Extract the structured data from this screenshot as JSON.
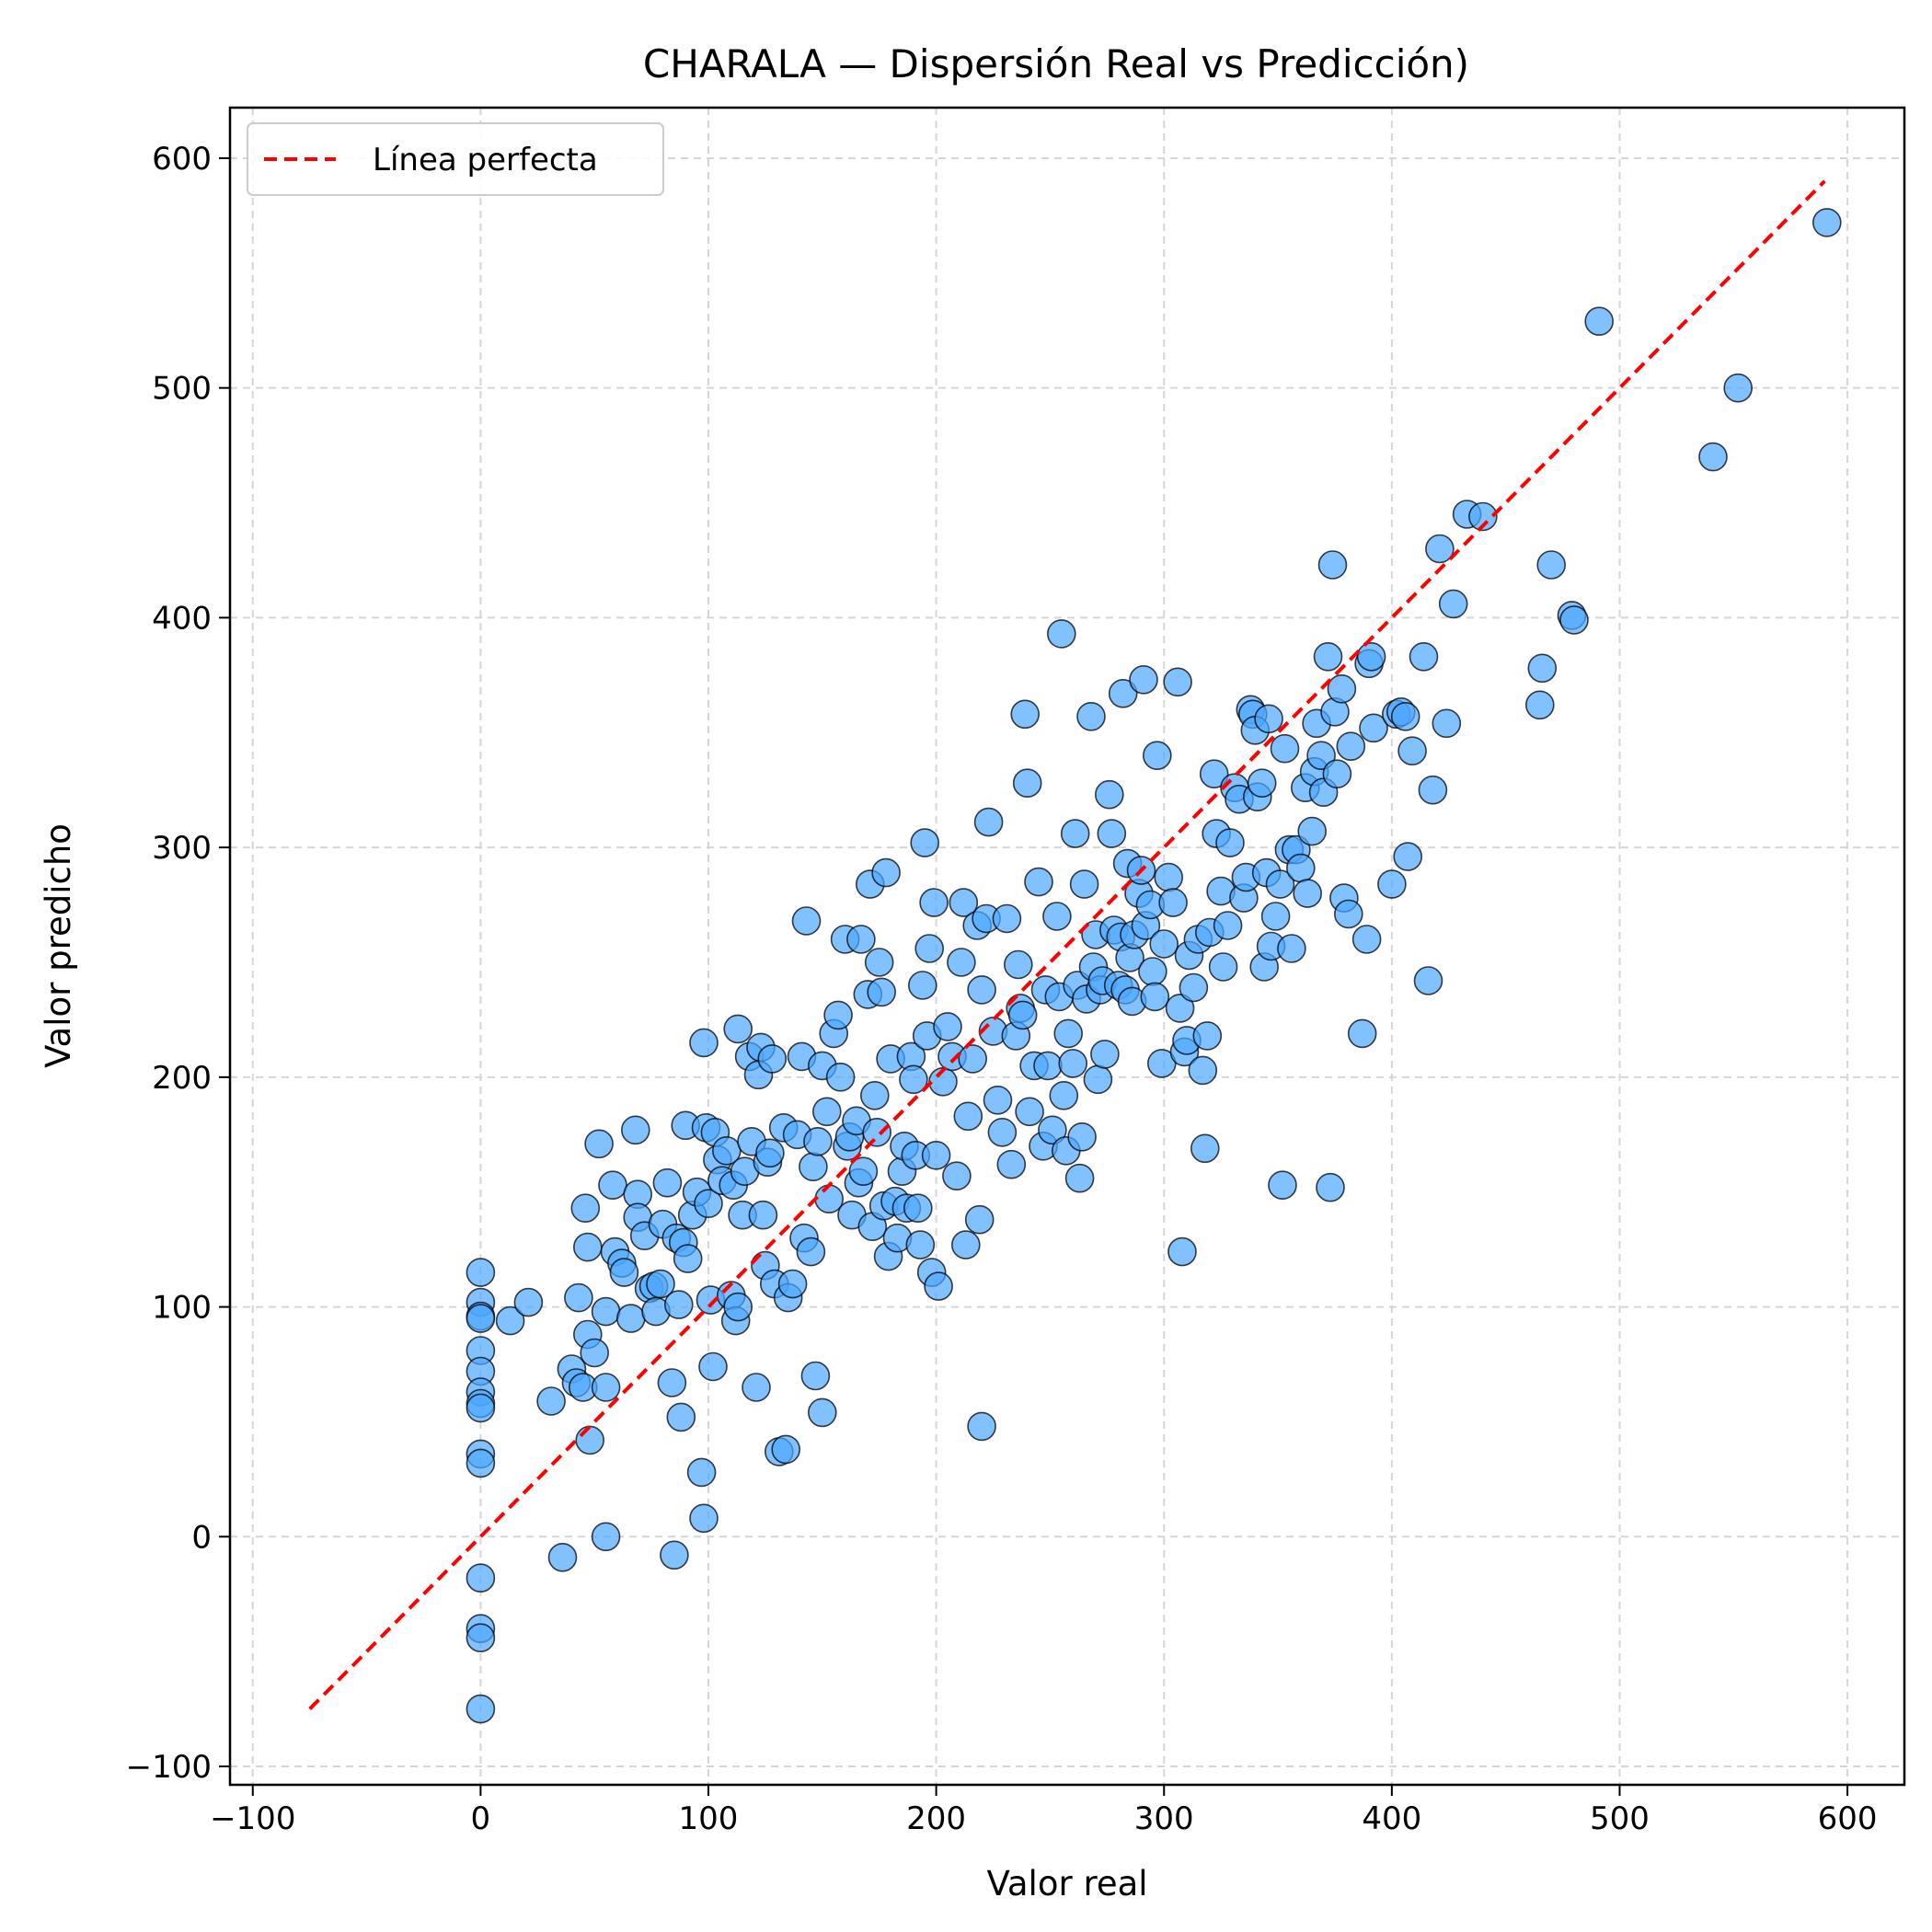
{
  "chart_data": {
    "type": "scatter",
    "title": "CHARALA — Dispersión Real vs Predicción)",
    "xlabel": "Valor real",
    "ylabel": "Valor predicho",
    "xlim": [
      -110,
      625
    ],
    "ylim": [
      -108,
      622
    ],
    "xticks": [
      -100,
      0,
      100,
      200,
      300,
      400,
      500,
      600
    ],
    "yticks": [
      -100,
      0,
      100,
      200,
      300,
      400,
      500,
      600
    ],
    "xtick_labels": [
      "−100",
      "0",
      "100",
      "200",
      "300",
      "400",
      "500",
      "600"
    ],
    "ytick_labels": [
      "−100",
      "0",
      "100",
      "200",
      "300",
      "400",
      "500",
      "600"
    ],
    "grid": true,
    "legend_position": "top-left",
    "colors": {
      "points": "#4da6ff",
      "point_edge": "#000000",
      "reference": "#ff0000"
    },
    "series": [
      {
        "name": "",
        "type": "scatter",
        "points": [
          [
            0,
            115
          ],
          [
            0,
            102
          ],
          [
            0,
            96
          ],
          [
            0,
            95
          ],
          [
            0,
            81
          ],
          [
            0,
            72
          ],
          [
            0,
            63
          ],
          [
            0,
            58
          ],
          [
            0,
            56
          ],
          [
            0,
            36
          ],
          [
            0,
            32
          ],
          [
            0,
            -18
          ],
          [
            0,
            -40
          ],
          [
            0,
            -44
          ],
          [
            0,
            -75
          ],
          [
            13,
            94
          ],
          [
            21,
            102
          ],
          [
            31,
            59
          ],
          [
            36,
            -9
          ],
          [
            40,
            73
          ],
          [
            42,
            67
          ],
          [
            43,
            104
          ],
          [
            45,
            65
          ],
          [
            46,
            143
          ],
          [
            47,
            126
          ],
          [
            47,
            88
          ],
          [
            48,
            42
          ],
          [
            50,
            80
          ],
          [
            52,
            171
          ],
          [
            55,
            0
          ],
          [
            55,
            98
          ],
          [
            55,
            65
          ],
          [
            58,
            153
          ],
          [
            59,
            124
          ],
          [
            62,
            119
          ],
          [
            63,
            115
          ],
          [
            66,
            95
          ],
          [
            68,
            177
          ],
          [
            69,
            149
          ],
          [
            69,
            139
          ],
          [
            72,
            131
          ],
          [
            74,
            108
          ],
          [
            76,
            109
          ],
          [
            77,
            98
          ],
          [
            79,
            110
          ],
          [
            80,
            136
          ],
          [
            82,
            154
          ],
          [
            84,
            67
          ],
          [
            85,
            -8
          ],
          [
            86,
            130
          ],
          [
            87,
            101
          ],
          [
            88,
            52
          ],
          [
            89,
            128
          ],
          [
            90,
            179
          ],
          [
            91,
            121
          ],
          [
            93,
            140
          ],
          [
            95,
            150
          ],
          [
            97,
            28
          ],
          [
            98,
            215
          ],
          [
            98,
            8
          ],
          [
            99,
            178
          ],
          [
            100,
            145
          ],
          [
            101,
            103
          ],
          [
            102,
            74
          ],
          [
            103,
            176
          ],
          [
            104,
            164
          ],
          [
            106,
            155
          ],
          [
            108,
            168
          ],
          [
            110,
            105
          ],
          [
            111,
            153
          ],
          [
            112,
            94
          ],
          [
            113,
            221
          ],
          [
            113,
            100
          ],
          [
            115,
            140
          ],
          [
            116,
            159
          ],
          [
            118,
            209
          ],
          [
            119,
            172
          ],
          [
            121,
            65
          ],
          [
            122,
            201
          ],
          [
            123,
            213
          ],
          [
            124,
            140
          ],
          [
            125,
            118
          ],
          [
            126,
            163
          ],
          [
            127,
            167
          ],
          [
            128,
            208
          ],
          [
            129,
            110
          ],
          [
            131,
            37
          ],
          [
            133,
            178
          ],
          [
            134,
            38
          ],
          [
            135,
            104
          ],
          [
            137,
            110
          ],
          [
            139,
            175
          ],
          [
            141,
            209
          ],
          [
            142,
            130
          ],
          [
            143,
            268
          ],
          [
            145,
            124
          ],
          [
            146,
            161
          ],
          [
            147,
            70
          ],
          [
            148,
            172
          ],
          [
            150,
            54
          ],
          [
            150,
            205
          ],
          [
            152,
            185
          ],
          [
            153,
            147
          ],
          [
            155,
            219
          ],
          [
            157,
            227
          ],
          [
            158,
            200
          ],
          [
            160,
            260
          ],
          [
            161,
            170
          ],
          [
            162,
            174
          ],
          [
            163,
            140
          ],
          [
            165,
            181
          ],
          [
            166,
            154
          ],
          [
            167,
            260
          ],
          [
            168,
            159
          ],
          [
            170,
            236
          ],
          [
            171,
            284
          ],
          [
            172,
            135
          ],
          [
            173,
            192
          ],
          [
            174,
            176
          ],
          [
            175,
            250
          ],
          [
            176,
            237
          ],
          [
            177,
            144
          ],
          [
            178,
            289
          ],
          [
            179,
            122
          ],
          [
            180,
            208
          ],
          [
            182,
            146
          ],
          [
            183,
            130
          ],
          [
            185,
            159
          ],
          [
            186,
            170
          ],
          [
            187,
            143
          ],
          [
            189,
            209
          ],
          [
            190,
            199
          ],
          [
            191,
            166
          ],
          [
            192,
            143
          ],
          [
            193,
            127
          ],
          [
            194,
            240
          ],
          [
            195,
            302
          ],
          [
            196,
            218
          ],
          [
            197,
            256
          ],
          [
            198,
            115
          ],
          [
            199,
            276
          ],
          [
            200,
            166
          ],
          [
            201,
            109
          ],
          [
            203,
            198
          ],
          [
            205,
            222
          ],
          [
            207,
            209
          ],
          [
            209,
            157
          ],
          [
            211,
            250
          ],
          [
            212,
            276
          ],
          [
            213,
            127
          ],
          [
            214,
            183
          ],
          [
            216,
            208
          ],
          [
            218,
            266
          ],
          [
            219,
            138
          ],
          [
            220,
            48
          ],
          [
            220,
            238
          ],
          [
            222,
            269
          ],
          [
            223,
            311
          ],
          [
            225,
            220
          ],
          [
            227,
            190
          ],
          [
            229,
            176
          ],
          [
            231,
            269
          ],
          [
            233,
            162
          ],
          [
            235,
            218
          ],
          [
            236,
            249
          ],
          [
            237,
            230
          ],
          [
            238,
            227
          ],
          [
            239,
            358
          ],
          [
            240,
            328
          ],
          [
            241,
            185
          ],
          [
            243,
            205
          ],
          [
            245,
            285
          ],
          [
            247,
            170
          ],
          [
            248,
            238
          ],
          [
            249,
            205
          ],
          [
            251,
            177
          ],
          [
            253,
            270
          ],
          [
            254,
            235
          ],
          [
            255,
            393
          ],
          [
            256,
            192
          ],
          [
            257,
            168
          ],
          [
            258,
            219
          ],
          [
            260,
            206
          ],
          [
            261,
            306
          ],
          [
            262,
            240
          ],
          [
            263,
            156
          ],
          [
            264,
            174
          ],
          [
            265,
            284
          ],
          [
            266,
            234
          ],
          [
            268,
            357
          ],
          [
            269,
            248
          ],
          [
            270,
            262
          ],
          [
            271,
            199
          ],
          [
            272,
            238
          ],
          [
            273,
            242
          ],
          [
            274,
            210
          ],
          [
            276,
            323
          ],
          [
            277,
            306
          ],
          [
            278,
            264
          ],
          [
            280,
            240
          ],
          [
            281,
            261
          ],
          [
            282,
            367
          ],
          [
            283,
            238
          ],
          [
            284,
            293
          ],
          [
            285,
            252
          ],
          [
            286,
            233
          ],
          [
            287,
            262
          ],
          [
            289,
            280
          ],
          [
            290,
            290
          ],
          [
            291,
            373
          ],
          [
            292,
            266
          ],
          [
            294,
            275
          ],
          [
            295,
            246
          ],
          [
            296,
            235
          ],
          [
            297,
            340
          ],
          [
            299,
            206
          ],
          [
            300,
            258
          ],
          [
            302,
            287
          ],
          [
            304,
            276
          ],
          [
            306,
            372
          ],
          [
            307,
            230
          ],
          [
            308,
            124
          ],
          [
            309,
            211
          ],
          [
            310,
            216
          ],
          [
            311,
            253
          ],
          [
            313,
            239
          ],
          [
            315,
            260
          ],
          [
            317,
            203
          ],
          [
            318,
            169
          ],
          [
            319,
            218
          ],
          [
            320,
            263
          ],
          [
            322,
            332
          ],
          [
            323,
            306
          ],
          [
            325,
            281
          ],
          [
            326,
            248
          ],
          [
            328,
            266
          ],
          [
            329,
            302
          ],
          [
            331,
            326
          ],
          [
            333,
            321
          ],
          [
            335,
            278
          ],
          [
            336,
            287
          ],
          [
            338,
            360
          ],
          [
            339,
            358
          ],
          [
            340,
            351
          ],
          [
            341,
            322
          ],
          [
            343,
            328
          ],
          [
            344,
            248
          ],
          [
            345,
            289
          ],
          [
            346,
            356
          ],
          [
            347,
            257
          ],
          [
            349,
            270
          ],
          [
            351,
            284
          ],
          [
            352,
            153
          ],
          [
            353,
            343
          ],
          [
            355,
            299
          ],
          [
            356,
            256
          ],
          [
            358,
            299
          ],
          [
            360,
            291
          ],
          [
            362,
            326
          ],
          [
            363,
            280
          ],
          [
            365,
            307
          ],
          [
            366,
            333
          ],
          [
            367,
            354
          ],
          [
            369,
            340
          ],
          [
            370,
            324
          ],
          [
            372,
            383
          ],
          [
            373,
            152
          ],
          [
            374,
            423
          ],
          [
            375,
            359
          ],
          [
            376,
            332
          ],
          [
            378,
            369
          ],
          [
            379,
            278
          ],
          [
            381,
            271
          ],
          [
            382,
            344
          ],
          [
            387,
            219
          ],
          [
            389,
            260
          ],
          [
            390,
            380
          ],
          [
            391,
            383
          ],
          [
            392,
            352
          ],
          [
            400,
            284
          ],
          [
            402,
            358
          ],
          [
            404,
            359
          ],
          [
            406,
            357
          ],
          [
            407,
            296
          ],
          [
            409,
            342
          ],
          [
            414,
            383
          ],
          [
            416,
            242
          ],
          [
            418,
            325
          ],
          [
            421,
            430
          ],
          [
            424,
            354
          ],
          [
            427,
            406
          ],
          [
            433,
            445
          ],
          [
            440,
            444
          ],
          [
            465,
            362
          ],
          [
            466,
            378
          ],
          [
            470,
            423
          ],
          [
            479,
            401
          ],
          [
            480,
            399
          ],
          [
            491,
            529
          ],
          [
            541,
            470
          ],
          [
            552,
            500
          ],
          [
            591,
            572
          ]
        ]
      },
      {
        "name": "Línea perfecta",
        "type": "line",
        "style": "dashed",
        "x": [
          -75,
          590
        ],
        "y": [
          -75,
          590
        ]
      }
    ]
  }
}
